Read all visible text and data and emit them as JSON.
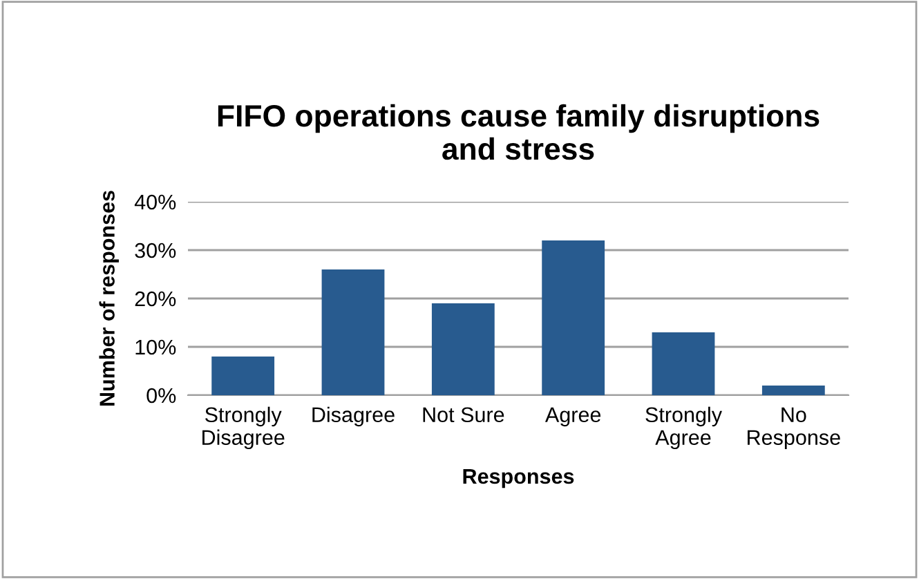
{
  "chart_data": {
    "type": "bar",
    "title": "FIFO operations cause family disruptions\nand stress",
    "xlabel": "Responses",
    "ylabel": "Number of responses",
    "categories": [
      "Strongly\nDisagree",
      "Disagree",
      "Not Sure",
      "Agree",
      "Strongly\nAgree",
      "No\nResponse"
    ],
    "values": [
      8,
      26,
      19,
      32,
      13,
      2
    ],
    "color": "#285b8f",
    "ylim": [
      0,
      40
    ],
    "yticks": [
      {
        "value": 0,
        "label": "0%"
      },
      {
        "value": 10,
        "label": "10%"
      },
      {
        "value": 20,
        "label": "20%"
      },
      {
        "value": 30,
        "label": "30%"
      },
      {
        "value": 40,
        "label": "40%"
      }
    ],
    "grid": "y",
    "legend": false
  }
}
